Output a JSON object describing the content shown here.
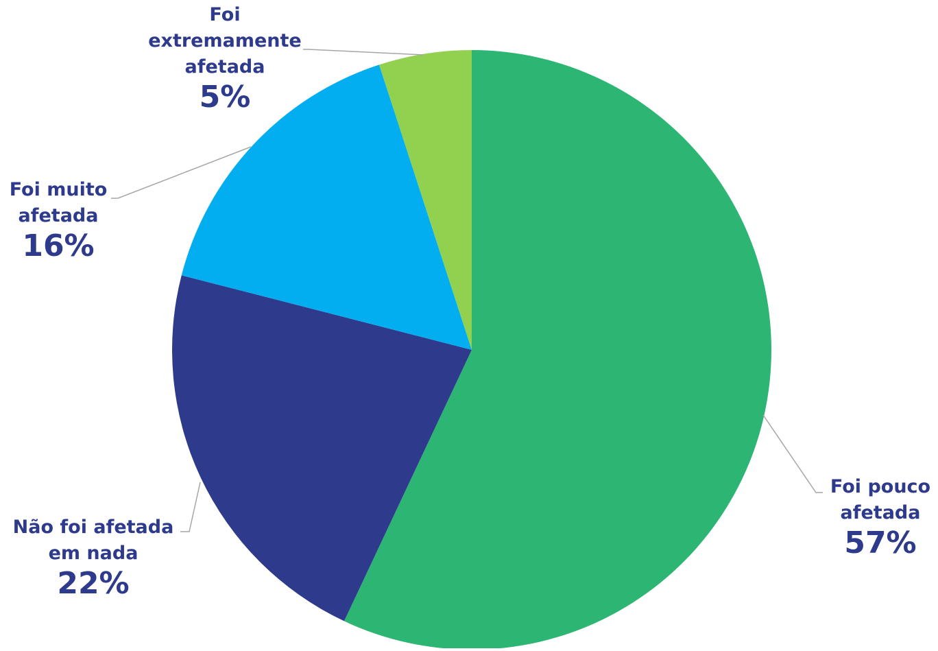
{
  "chart_data": {
    "type": "pie",
    "start_angle": "12 o'clock",
    "direction": "clockwise",
    "legend": "none",
    "label_color": "#2e3a8c",
    "leader_line_color": "#a6a6a6",
    "slices": [
      {
        "name_lines": [
          "Foi pouco",
          "afetada"
        ],
        "value": 57,
        "label": "57%",
        "color": "#2db673"
      },
      {
        "name_lines": [
          "Não foi afetada",
          "em nada"
        ],
        "value": 22,
        "label": "22%",
        "color": "#2e3a8c"
      },
      {
        "name_lines": [
          "Foi muito",
          "afetada"
        ],
        "value": 16,
        "label": "16%",
        "color": "#02aeef"
      },
      {
        "name_lines": [
          "Foi",
          "extremamente",
          "afetada"
        ],
        "value": 5,
        "label": "5%",
        "color": "#92d050"
      }
    ]
  }
}
